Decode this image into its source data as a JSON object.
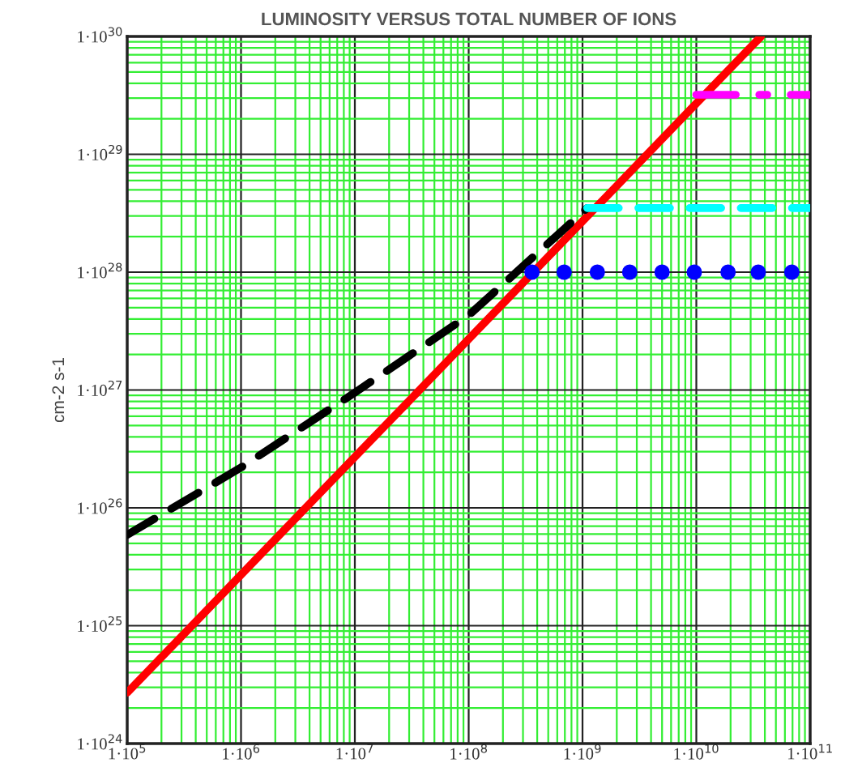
{
  "chart_data": {
    "type": "line",
    "title": "LUMINOSITY VERSUS TOTAL NUMBER OF IONS",
    "ylabel": "cm-2 s-1",
    "log": "xy",
    "grid": true,
    "xlim": [
      100000,
      100000000000
    ],
    "ylim": [
      1e+24,
      1e+30
    ],
    "xticks": [
      {
        "value": 100000,
        "label": "1·10$^{5}$"
      },
      {
        "value": 200000.0,
        "label": null
      },
      {
        "value": 300000.0,
        "label": null
      },
      {
        "value": 400000.0,
        "label": null
      },
      {
        "value": 500000.0,
        "label": null
      },
      {
        "value": 600000.0,
        "label": null
      },
      {
        "value": 700000.0,
        "label": null
      },
      {
        "value": 800000.0,
        "label": null
      },
      {
        "value": 900000.0,
        "label": null
      },
      {
        "value": 1000000,
        "label": "1·10$^{6}$"
      },
      {
        "value": 2000000.0,
        "label": null
      },
      {
        "value": 3000000.0,
        "label": null
      },
      {
        "value": 4000000.0,
        "label": null
      },
      {
        "value": 5000000.0,
        "label": null
      },
      {
        "value": 6000000.0,
        "label": null
      },
      {
        "value": 7000000.0,
        "label": null
      },
      {
        "value": 8000000.0,
        "label": null
      },
      {
        "value": 9000000.0,
        "label": null
      },
      {
        "value": 10000000,
        "label": "1·10$^{7}$"
      },
      {
        "value": 20000000.0,
        "label": null
      },
      {
        "value": 30000000.0,
        "label": null
      },
      {
        "value": 40000000.0,
        "label": null
      },
      {
        "value": 50000000.0,
        "label": null
      },
      {
        "value": 60000000.0,
        "label": null
      },
      {
        "value": 70000000.0,
        "label": null
      },
      {
        "value": 80000000.0,
        "label": null
      },
      {
        "value": 90000000.0,
        "label": null
      },
      {
        "value": 100000000,
        "label": "1·10$^{8}$"
      },
      {
        "value": 200000000.0,
        "label": null
      },
      {
        "value": 300000000.0,
        "label": null
      },
      {
        "value": 400000000.0,
        "label": null
      },
      {
        "value": 500000000.0,
        "label": null
      },
      {
        "value": 600000000.0,
        "label": null
      },
      {
        "value": 700000000.0,
        "label": null
      },
      {
        "value": 800000000.0,
        "label": null
      },
      {
        "value": 900000000.0,
        "label": null
      },
      {
        "value": 1000000000,
        "label": "1·10$^{9}$"
      },
      {
        "value": 2000000000.0,
        "label": null
      },
      {
        "value": 3000000000.0,
        "label": null
      },
      {
        "value": 4000000000.0,
        "label": null
      },
      {
        "value": 5000000000.0,
        "label": null
      },
      {
        "value": 6000000000.0,
        "label": null
      },
      {
        "value": 7000000000.0,
        "label": null
      },
      {
        "value": 8000000000.0,
        "label": null
      },
      {
        "value": 9000000000.0,
        "label": null
      },
      {
        "value": 10000000000,
        "label": "1·10$^{10}$"
      },
      {
        "value": 20000000000.0,
        "label": null
      },
      {
        "value": 30000000000.0,
        "label": null
      },
      {
        "value": 40000000000.0,
        "label": null
      },
      {
        "value": 50000000000.0,
        "label": null
      },
      {
        "value": 60000000000.0,
        "label": null
      },
      {
        "value": 70000000000.0,
        "label": null
      },
      {
        "value": 80000000000.0,
        "label": null
      },
      {
        "value": 90000000000.0,
        "label": null
      },
      {
        "value": 100000000000,
        "label": "1·10$^{11}$"
      }
    ],
    "yticks": [
      {
        "value": 1e+24,
        "label": "1·10$^{24}$"
      },
      {
        "value": 2e+24,
        "label": null
      },
      {
        "value": 3e+24,
        "label": null
      },
      {
        "value": 4e+24,
        "label": null
      },
      {
        "value": 5e+24,
        "label": null
      },
      {
        "value": 6e+24,
        "label": null
      },
      {
        "value": 7e+24,
        "label": null
      },
      {
        "value": 8e+24,
        "label": null
      },
      {
        "value": 9e+24,
        "label": null
      },
      {
        "value": 1e+25,
        "label": "1·10$^{25}$"
      },
      {
        "value": 2e+25,
        "label": null
      },
      {
        "value": 3e+25,
        "label": null
      },
      {
        "value": 4e+25,
        "label": null
      },
      {
        "value": 5e+25,
        "label": null
      },
      {
        "value": 6e+25,
        "label": null
      },
      {
        "value": 7e+25,
        "label": null
      },
      {
        "value": 8e+25,
        "label": null
      },
      {
        "value": 9e+25,
        "label": null
      },
      {
        "value": 1e+26,
        "label": "1·10$^{26}$"
      },
      {
        "value": 2e+26,
        "label": null
      },
      {
        "value": 3e+26,
        "label": null
      },
      {
        "value": 4e+26,
        "label": null
      },
      {
        "value": 5e+26,
        "label": null
      },
      {
        "value": 6e+26,
        "label": null
      },
      {
        "value": 7e+26,
        "label": null
      },
      {
        "value": 8e+26,
        "label": null
      },
      {
        "value": 9e+26,
        "label": null
      },
      {
        "value": 1e+27,
        "label": "1·10$^{27}$"
      },
      {
        "value": 2e+27,
        "label": null
      },
      {
        "value": 3e+27,
        "label": null
      },
      {
        "value": 4e+27,
        "label": null
      },
      {
        "value": 5e+27,
        "label": null
      },
      {
        "value": 6e+27,
        "label": null
      },
      {
        "value": 7e+27,
        "label": null
      },
      {
        "value": 8e+27,
        "label": null
      },
      {
        "value": 9e+27,
        "label": null
      },
      {
        "value": 1e+28,
        "label": "1·10$^{28}$"
      },
      {
        "value": 2e+28,
        "label": null
      },
      {
        "value": 3e+28,
        "label": null
      },
      {
        "value": 4e+28,
        "label": null
      },
      {
        "value": 5e+28,
        "label": null
      },
      {
        "value": 6e+28,
        "label": null
      },
      {
        "value": 7e+28,
        "label": null
      },
      {
        "value": 8e+28,
        "label": null
      },
      {
        "value": 9e+28,
        "label": null
      },
      {
        "value": 1e+29,
        "label": "1·10$^{29}$"
      },
      {
        "value": 2e+29,
        "label": null
      },
      {
        "value": 3e+29,
        "label": null
      },
      {
        "value": 4e+29,
        "label": null
      },
      {
        "value": 5e+29,
        "label": null
      },
      {
        "value": 6e+29,
        "label": null
      },
      {
        "value": 7e+29,
        "label": null
      },
      {
        "value": 8e+29,
        "label": null
      },
      {
        "value": 9e+29,
        "label": null
      },
      {
        "value": 1e+30,
        "label": "1·10$^{30}$"
      }
    ],
    "series": [
      {
        "color": "#ff0000",
        "line_style": "solid",
        "x": [
          100000,
          1000000,
          10000000,
          100000000,
          1000000000,
          10000000000,
          37000000000
        ],
        "values": [
          2.7e+24,
          2.7e+25,
          2.7e+26,
          2.7e+27,
          2.7e+28,
          2.7e+29,
          1e+30
        ]
      },
      {
        "color": "#000000",
        "line_style": "dashed",
        "x": [
          100000,
          1000000,
          10000000,
          100000000,
          1100000000
        ],
        "values": [
          5.9e+25,
          2.2e+26,
          9.5e+26,
          4.3e+27,
          3.5e+28
        ]
      },
      {
        "color": "#00ffff",
        "line_style": "dashed",
        "x": [
          1100000000,
          100000000000
        ],
        "values": [
          3.5e+28,
          3.5e+28
        ]
      },
      {
        "color": "#ff00ff",
        "line_style": "dashdot",
        "x": [
          10000000000,
          100000000000
        ],
        "values": [
          3.2e+29,
          3.2e+29
        ]
      },
      {
        "type": "scatter",
        "marker": "circle",
        "color": "#0000ff",
        "x": [
          360000000,
          690000000,
          1350000000,
          2600000000,
          5000000000,
          9600000000,
          19000000000,
          35000000000,
          69000000000
        ],
        "values": [
          1e+28,
          1e+28,
          1e+28,
          1e+28,
          1e+28,
          1e+28,
          1e+28,
          1e+28,
          1e+28
        ]
      }
    ]
  }
}
